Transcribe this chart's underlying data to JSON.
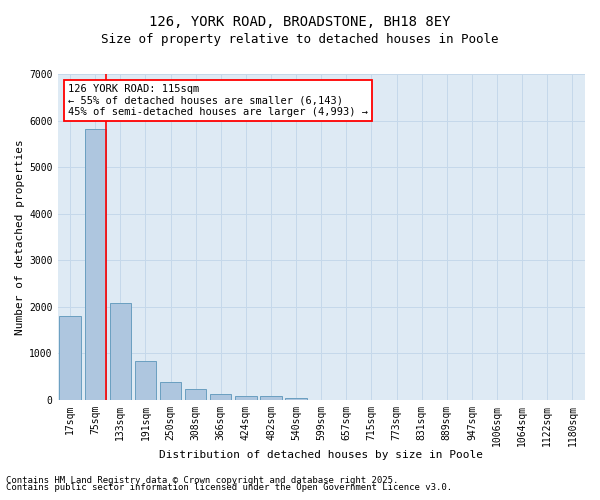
{
  "title_line1": "126, YORK ROAD, BROADSTONE, BH18 8EY",
  "title_line2": "Size of property relative to detached houses in Poole",
  "xlabel": "Distribution of detached houses by size in Poole",
  "ylabel": "Number of detached properties",
  "categories": [
    "17sqm",
    "75sqm",
    "133sqm",
    "191sqm",
    "250sqm",
    "308sqm",
    "366sqm",
    "424sqm",
    "482sqm",
    "540sqm",
    "599sqm",
    "657sqm",
    "715sqm",
    "773sqm",
    "831sqm",
    "889sqm",
    "947sqm",
    "1006sqm",
    "1064sqm",
    "1122sqm",
    "1180sqm"
  ],
  "values": [
    1800,
    5820,
    2080,
    830,
    380,
    240,
    130,
    80,
    80,
    35,
    0,
    0,
    0,
    0,
    0,
    0,
    0,
    0,
    0,
    0,
    0
  ],
  "bar_color": "#aec6df",
  "bar_edge_color": "#6a9fc0",
  "grid_color": "#c5d8ea",
  "background_color": "#deeaf4",
  "vline_color": "red",
  "annotation_text": "126 YORK ROAD: 115sqm\n← 55% of detached houses are smaller (6,143)\n45% of semi-detached houses are larger (4,993) →",
  "annotation_box_color": "white",
  "annotation_box_edge_color": "red",
  "ylim": [
    0,
    7000
  ],
  "yticks": [
    0,
    1000,
    2000,
    3000,
    4000,
    5000,
    6000,
    7000
  ],
  "footer_line1": "Contains HM Land Registry data © Crown copyright and database right 2025.",
  "footer_line2": "Contains public sector information licensed under the Open Government Licence v3.0.",
  "title_fontsize": 10,
  "subtitle_fontsize": 9,
  "axis_label_fontsize": 8,
  "tick_fontsize": 7,
  "annotation_fontsize": 7.5,
  "footer_fontsize": 6.5
}
